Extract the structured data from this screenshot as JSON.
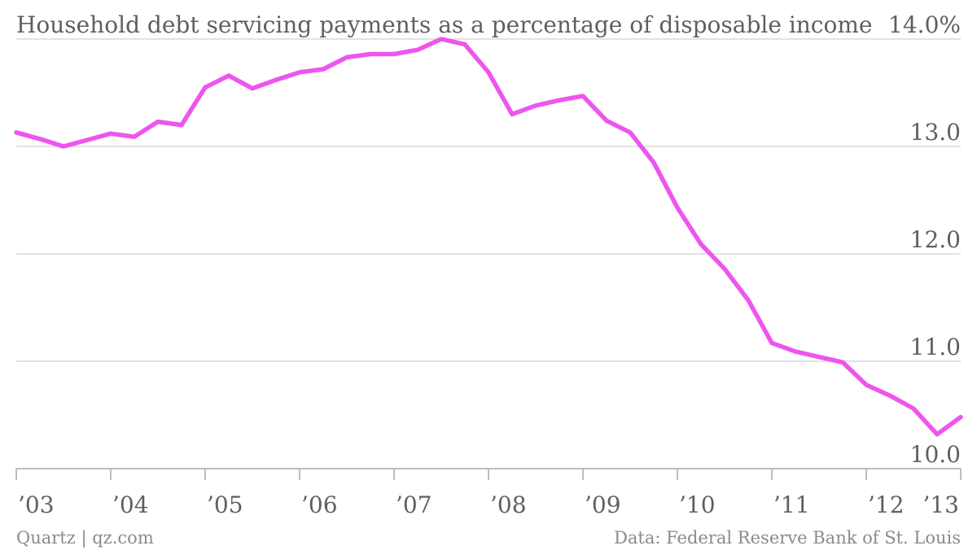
{
  "chart_data": {
    "type": "line",
    "title": "Household debt servicing payments as a percentage of disposable income",
    "xlabel": "",
    "ylabel": "",
    "ylim": [
      10.0,
      14.0
    ],
    "yticks": [
      {
        "value": 14.0,
        "label": "14.0%"
      },
      {
        "value": 13.0,
        "label": "13.0"
      },
      {
        "value": 12.0,
        "label": "12.0"
      },
      {
        "value": 11.0,
        "label": "11.0"
      },
      {
        "value": 10.0,
        "label": "10.0"
      }
    ],
    "xlim": [
      2003.0,
      2013.0
    ],
    "xticks": [
      {
        "value": 2003,
        "label": "’03"
      },
      {
        "value": 2004,
        "label": "’04"
      },
      {
        "value": 2005,
        "label": "’05"
      },
      {
        "value": 2006,
        "label": "’06"
      },
      {
        "value": 2007,
        "label": "’07"
      },
      {
        "value": 2008,
        "label": "’08"
      },
      {
        "value": 2009,
        "label": "’09"
      },
      {
        "value": 2010,
        "label": "’10"
      },
      {
        "value": 2011,
        "label": "’11"
      },
      {
        "value": 2012,
        "label": "’12"
      },
      {
        "value": 2013,
        "label": "’13"
      }
    ],
    "grid": true,
    "series": [
      {
        "color": "#ee55ee",
        "x": [
          2003.0,
          2003.25,
          2003.5,
          2003.75,
          2004.0,
          2004.25,
          2004.5,
          2004.75,
          2005.0,
          2005.25,
          2005.5,
          2005.75,
          2006.0,
          2006.25,
          2006.5,
          2006.75,
          2007.0,
          2007.25,
          2007.5,
          2007.75,
          2008.0,
          2008.25,
          2008.5,
          2008.75,
          2009.0,
          2009.25,
          2009.5,
          2009.75,
          2010.0,
          2010.25,
          2010.5,
          2010.75,
          2011.0,
          2011.25,
          2011.5,
          2011.75,
          2012.0,
          2012.25,
          2012.5,
          2012.75,
          2013.0
        ],
        "values": [
          13.13,
          13.07,
          13.0,
          13.06,
          13.12,
          13.09,
          13.23,
          13.2,
          13.55,
          13.66,
          13.54,
          13.62,
          13.69,
          13.72,
          13.83,
          13.86,
          13.86,
          13.9,
          14.0,
          13.95,
          13.69,
          13.3,
          13.38,
          13.43,
          13.47,
          13.24,
          13.13,
          12.85,
          12.43,
          12.09,
          11.86,
          11.57,
          11.17,
          11.09,
          11.04,
          10.99,
          10.78,
          10.68,
          10.56,
          10.32,
          10.48
        ]
      }
    ]
  },
  "footer": {
    "credit": "Quartz | qz.com",
    "source": "Data: Federal Reserve Bank of St. Louis"
  }
}
